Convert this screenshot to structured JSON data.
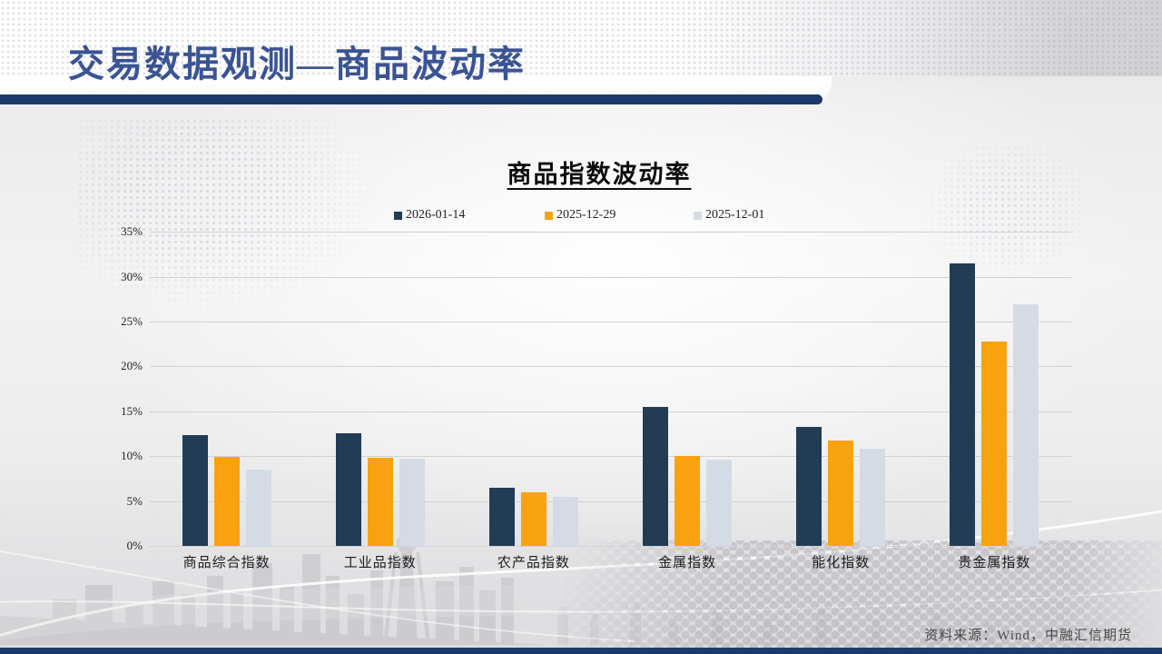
{
  "slide": {
    "title": "交易数据观测—商品波动率",
    "source": "资料来源：Wind，中融汇信期货"
  },
  "colors": {
    "title_text": "#3a5493",
    "header_bar": "#1e3a6b",
    "footer_bar": "#1e3a6b",
    "gridline": "#d2d2d5"
  },
  "chart_data": {
    "type": "bar",
    "title": "商品指数波动率",
    "categories": [
      "商品综合指数",
      "工业品指数",
      "农产品指数",
      "金属指数",
      "能化指数",
      "贵金属指数"
    ],
    "series": [
      {
        "name": "2026-01-14",
        "color": "#223c55",
        "values": [
          12.4,
          12.6,
          6.5,
          15.5,
          13.3,
          31.5
        ]
      },
      {
        "name": "2025-12-29",
        "color": "#f9a210",
        "values": [
          9.9,
          9.8,
          6.0,
          10.0,
          11.7,
          22.8
        ]
      },
      {
        "name": "2025-12-01",
        "color": "#d5dbe5",
        "values": [
          8.5,
          9.7,
          5.5,
          9.6,
          10.8,
          26.9
        ]
      }
    ],
    "y_ticks": [
      "0%",
      "5%",
      "10%",
      "15%",
      "20%",
      "25%",
      "30%",
      "35%"
    ],
    "ylim": [
      0,
      35
    ],
    "grid": true,
    "legend_position": "top",
    "xlabel": "",
    "ylabel": ""
  }
}
